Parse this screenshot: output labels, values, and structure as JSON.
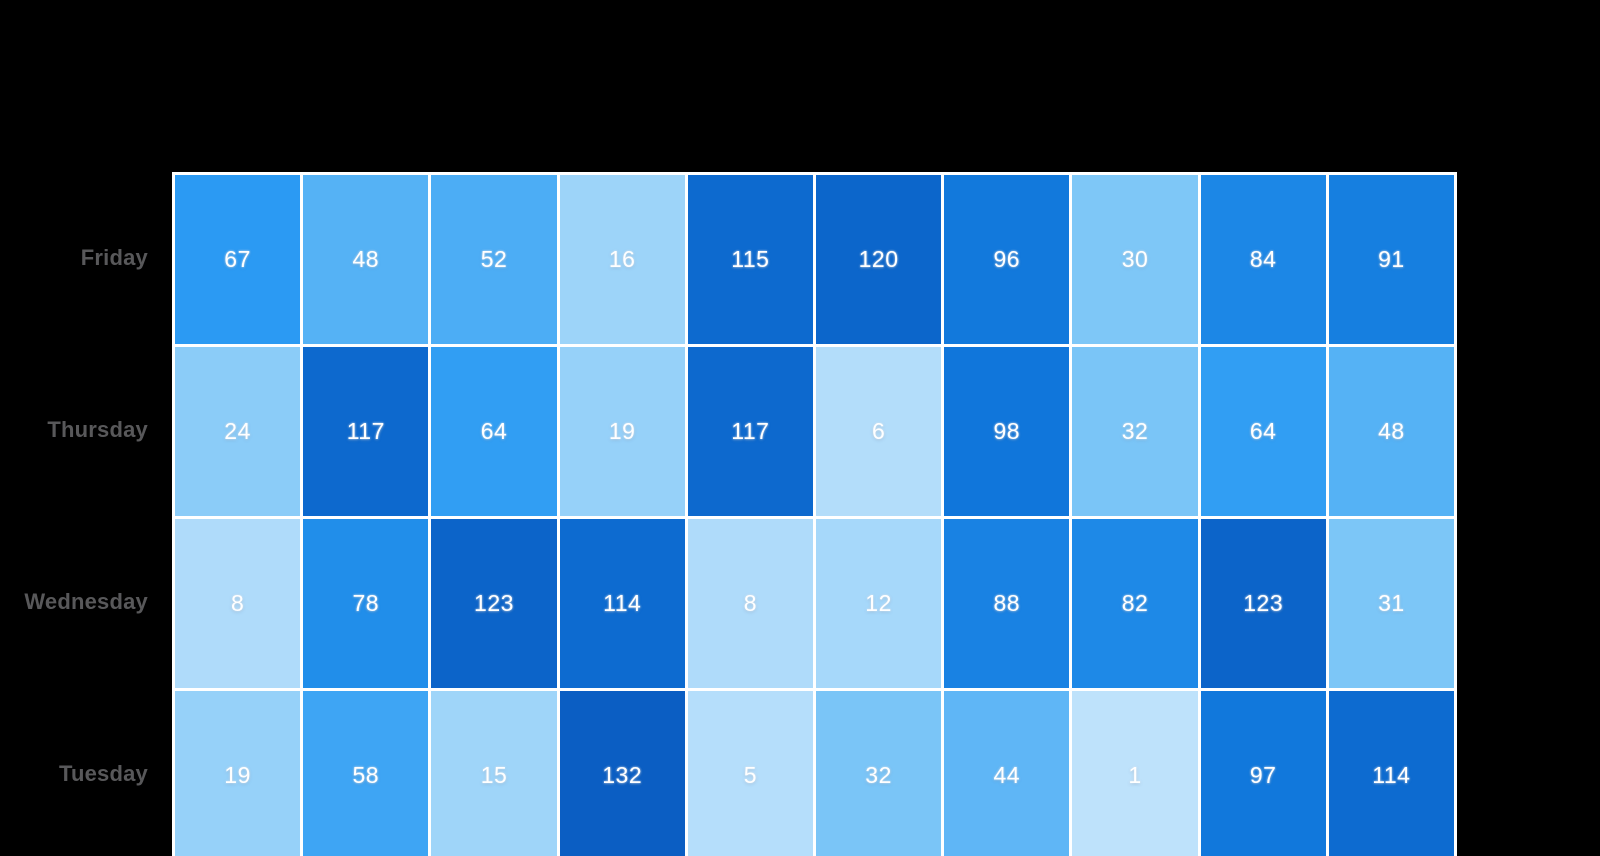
{
  "page": {
    "background_color": "#000000"
  },
  "chart_data": {
    "type": "heatmap",
    "rows": [
      "Friday",
      "Thursday",
      "Wednesday",
      "Tuesday"
    ],
    "column_count": 10,
    "column_labels_visible": false,
    "title_visible": false,
    "legend": "none",
    "values": [
      [
        67,
        48,
        52,
        16,
        115,
        120,
        96,
        30,
        84,
        91
      ],
      [
        24,
        117,
        64,
        19,
        117,
        6,
        98,
        32,
        64,
        48
      ],
      [
        8,
        78,
        123,
        114,
        8,
        12,
        88,
        82,
        123,
        31
      ],
      [
        19,
        58,
        15,
        132,
        5,
        32,
        44,
        1,
        97,
        114
      ]
    ],
    "value_min": 1,
    "value_max": 132,
    "color_scale_stops": [
      "#BEE2FB",
      "#76C3F7",
      "#2B9BF3",
      "#0F75DA",
      "#0B5EC3"
    ],
    "gridline_color": "#FFFFFF",
    "row_label_color": "#58585A",
    "cell_text_color": "#FFFFFF"
  }
}
